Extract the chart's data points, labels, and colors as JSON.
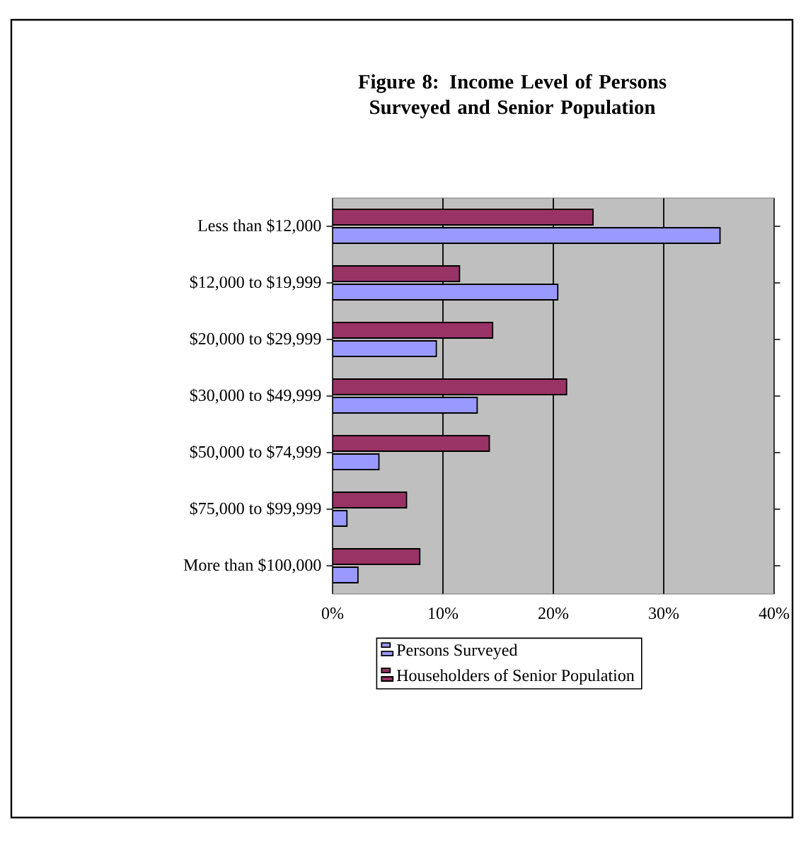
{
  "chart_data": {
    "type": "bar",
    "orientation": "horizontal",
    "title": "Figure 8: Income Level of Persons Surveyed and Senior Population",
    "categories": [
      "Less than $12,000",
      "$12,000 to $19,999",
      "$20,000 to $29,999",
      "$30,000 to $49,999",
      "$50,000 to $74,999",
      "$75,000 to $99,999",
      "More than $100,000"
    ],
    "series": [
      {
        "name": "Persons Surveyed",
        "color": "#9999ff",
        "values": [
          35.1,
          20.4,
          9.4,
          13.1,
          4.2,
          1.3,
          2.3
        ]
      },
      {
        "name": "Householders of Senior Population",
        "color": "#993366",
        "values": [
          23.6,
          11.5,
          14.5,
          21.2,
          14.2,
          6.7,
          7.9
        ]
      }
    ],
    "xlim": [
      0,
      40
    ],
    "xticks": [
      {
        "value": 0,
        "label": "0%"
      },
      {
        "value": 10,
        "label": "10%"
      },
      {
        "value": 20,
        "label": "20%"
      },
      {
        "value": 30,
        "label": "30%"
      },
      {
        "value": 40,
        "label": "40%"
      }
    ],
    "grid": "x",
    "legend": "bottom"
  }
}
